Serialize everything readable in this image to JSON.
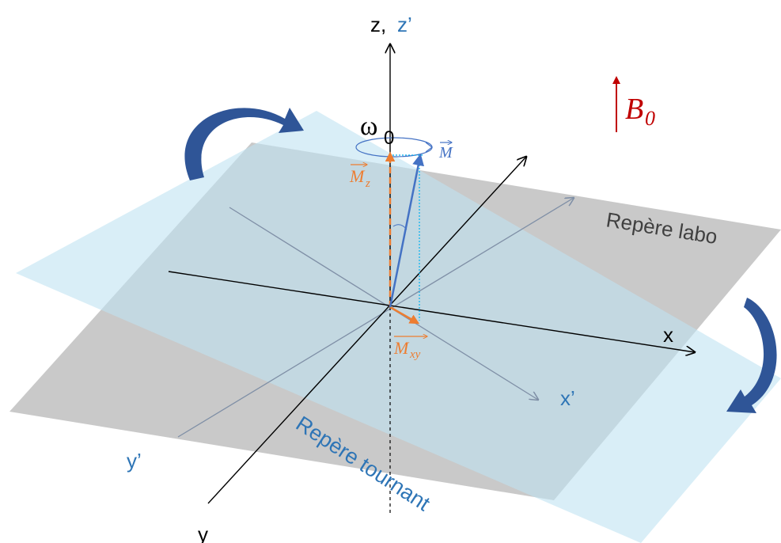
{
  "axes": {
    "z_label": "z,",
    "z_prime_label": "z’",
    "x_label": "x",
    "y_label": "y",
    "x_prime_label": "x’",
    "y_prime_label": "y’"
  },
  "planes": {
    "lab_frame_label": "Repère labo",
    "rotating_frame_label": "Repère tournant"
  },
  "field": {
    "symbol": "B",
    "subscript": "0",
    "color": "#c00000"
  },
  "precession": {
    "omega_symbol": "ω",
    "omega_subscript": "0"
  },
  "vectors": {
    "magnetization_label": "M",
    "mz_label": "M",
    "mz_subscript": "z",
    "mxy_label": "M",
    "mxy_subscript": "xy",
    "magnetization_color": "#4472c4",
    "component_color": "#ed7d31"
  },
  "colors": {
    "lab_plane": "#bfbfbf",
    "rotating_plane": "#bfe3f2",
    "rotating_frame_text": "#2e75b6",
    "rotation_arrow": "#2f5597"
  }
}
